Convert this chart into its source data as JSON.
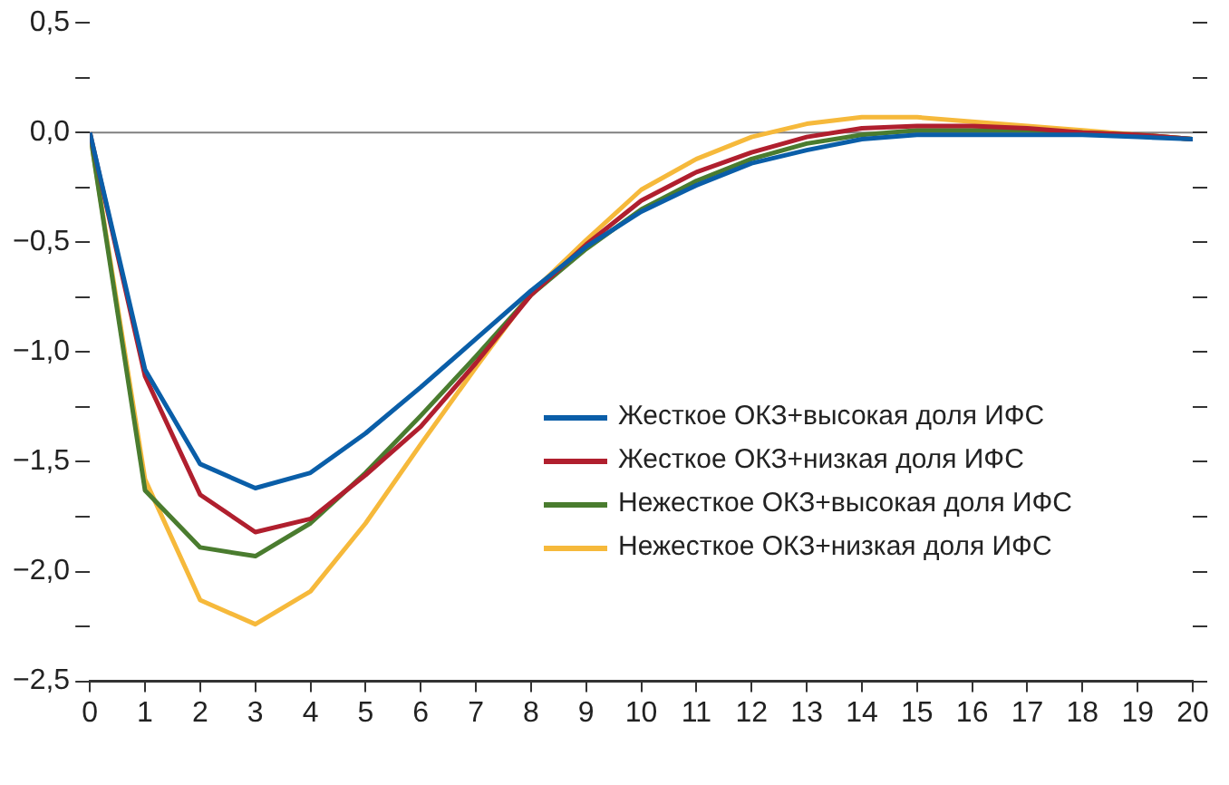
{
  "chart_data": {
    "type": "line",
    "x": [
      0,
      1,
      2,
      3,
      4,
      5,
      6,
      7,
      8,
      9,
      10,
      11,
      12,
      13,
      14,
      15,
      16,
      17,
      18,
      19,
      20
    ],
    "series": [
      {
        "name": "Жесткое ОКЗ+высокая доля ИФС",
        "color": "#0a5ea8",
        "values": [
          0,
          -1.08,
          -1.51,
          -1.62,
          -1.55,
          -1.37,
          -1.16,
          -0.94,
          -0.72,
          -0.52,
          -0.36,
          -0.24,
          -0.14,
          -0.08,
          -0.03,
          -0.01,
          -0.01,
          -0.01,
          -0.01,
          -0.02,
          -0.03
        ]
      },
      {
        "name": "Жесткое ОКЗ+низкая доля ИФС",
        "color": "#b01f2e",
        "values": [
          0,
          -1.11,
          -1.65,
          -1.82,
          -1.76,
          -1.56,
          -1.34,
          -1.05,
          -0.74,
          -0.51,
          -0.31,
          -0.18,
          -0.09,
          -0.02,
          0.02,
          0.03,
          0.03,
          0.02,
          0,
          -0.01,
          -0.03
        ]
      },
      {
        "name": "Нежесткое ОКЗ+высокая доля ИФС",
        "color": "#4a7c2f",
        "values": [
          0,
          -1.63,
          -1.89,
          -1.93,
          -1.78,
          -1.55,
          -1.29,
          -1.02,
          -0.74,
          -0.53,
          -0.35,
          -0.22,
          -0.12,
          -0.05,
          -0.01,
          0.01,
          0.01,
          0.01,
          0,
          -0.01,
          -0.03
        ]
      },
      {
        "name": "Нежесткое ОКЗ+низкая доля ИФС",
        "color": "#f6b93b",
        "values": [
          0,
          -1.58,
          -2.13,
          -2.24,
          -2.09,
          -1.78,
          -1.42,
          -1.07,
          -0.73,
          -0.49,
          -0.26,
          -0.12,
          -0.02,
          0.04,
          0.07,
          0.07,
          0.05,
          0.03,
          0.01,
          -0.01,
          -0.03
        ]
      }
    ],
    "xlim": [
      0,
      20
    ],
    "xticks": [
      0,
      1,
      2,
      3,
      4,
      5,
      6,
      7,
      8,
      9,
      10,
      11,
      12,
      13,
      14,
      15,
      16,
      17,
      18,
      19,
      20
    ],
    "ylim": [
      -2.5,
      0.5
    ],
    "yticks": [
      {
        "value": -2.5,
        "label": "−2,5"
      },
      {
        "value": -2.25,
        "label": null
      },
      {
        "value": -2,
        "label": "−2,0"
      },
      {
        "value": -1.75,
        "label": null
      },
      {
        "value": -1.5,
        "label": "−1,5"
      },
      {
        "value": -1.25,
        "label": null
      },
      {
        "value": -1,
        "label": "−1,0"
      },
      {
        "value": -0.75,
        "label": null
      },
      {
        "value": -0.5,
        "label": "−0,5"
      },
      {
        "value": -0.25,
        "label": null
      },
      {
        "value": 0,
        "label": "0,0"
      },
      {
        "value": 0.25,
        "label": null
      },
      {
        "value": 0.5,
        "label": "0,5"
      }
    ],
    "ref_lines": [
      {
        "axis": "y",
        "value": 0,
        "color": "#808080"
      }
    ],
    "legend": "right",
    "marker": "none",
    "line_style": "solid",
    "grid": false
  }
}
